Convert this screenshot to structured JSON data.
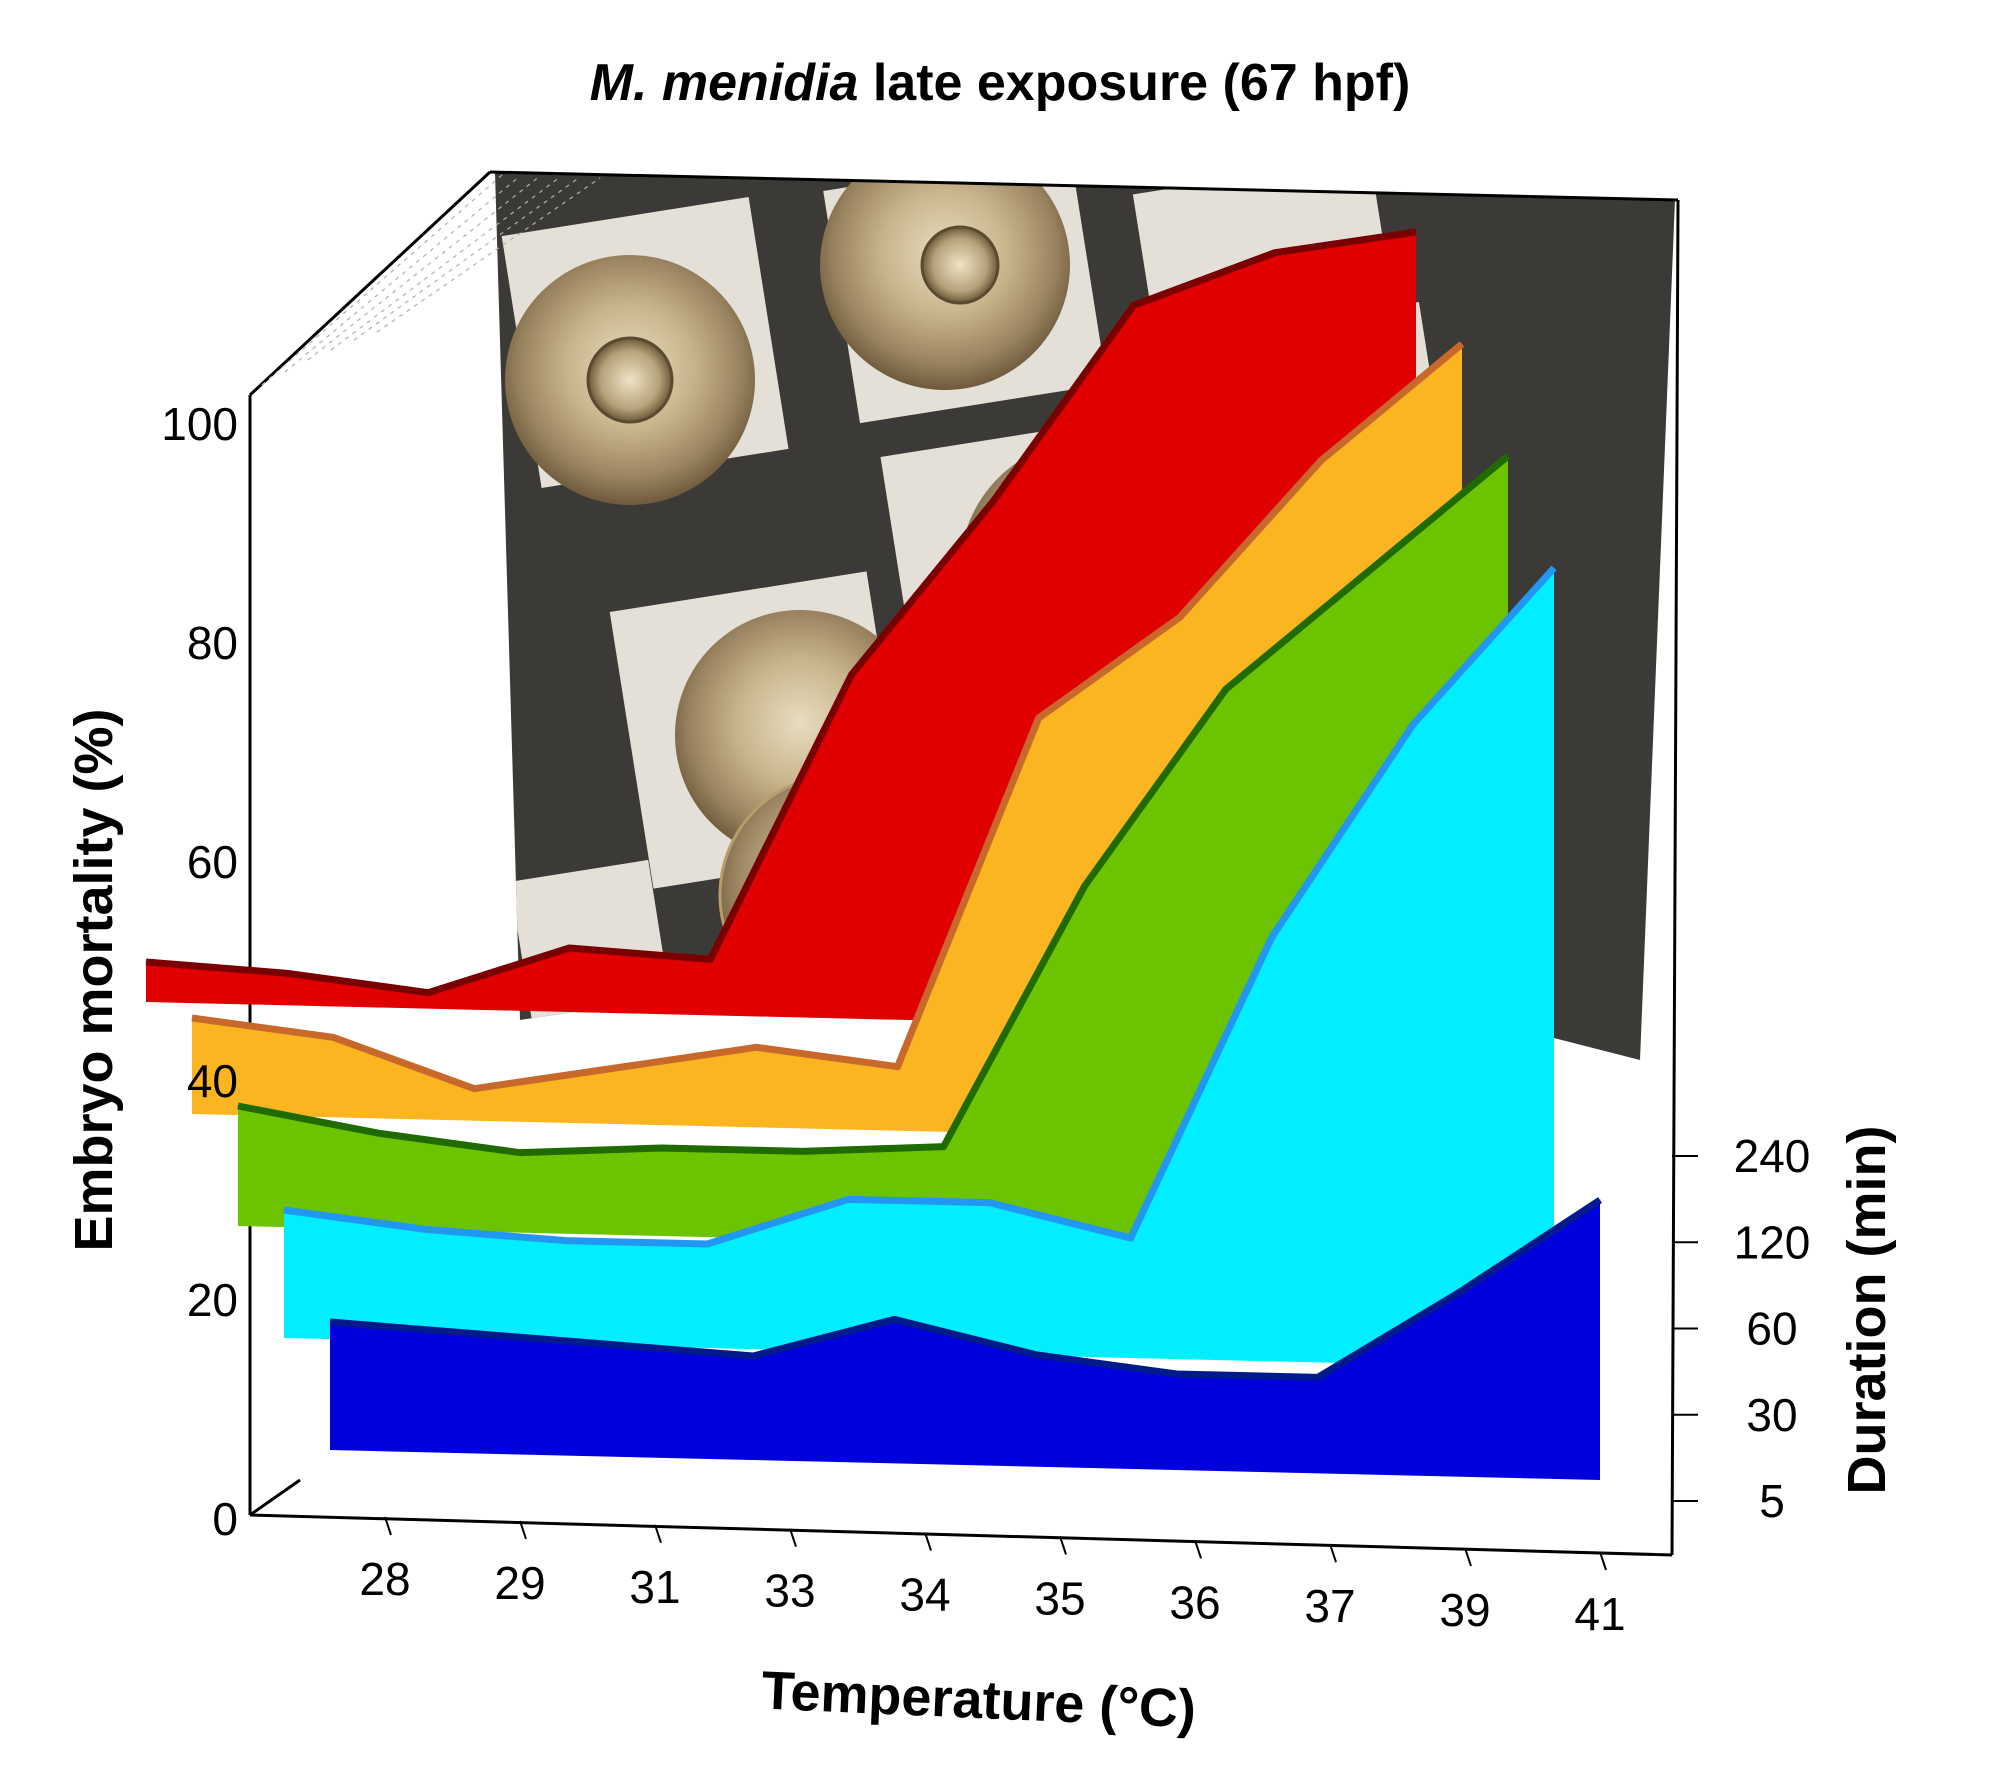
{
  "chart_data": {
    "type": "area",
    "title_italic": "M. menidia",
    "title_rest": " late exposure (67 hpf)",
    "xlabel": "Temperature (°C)",
    "ylabel": "Embryo mortality (%)",
    "zlabel": "Duration (min)",
    "categories": [
      "28",
      "29",
      "31",
      "33",
      "34",
      "35",
      "36",
      "37",
      "39",
      "41"
    ],
    "yticks": [
      "0",
      "20",
      "40",
      "60",
      "80",
      "100"
    ],
    "zticks": [
      "5",
      "30",
      "60",
      "120",
      "240"
    ],
    "ylim": [
      0,
      100
    ],
    "series": [
      {
        "name": "5",
        "color": "#0000dd",
        "edge": "#001a8c",
        "values": [
          16,
          15,
          14,
          13,
          18,
          14,
          12,
          12,
          23,
          35
        ]
      },
      {
        "name": "30",
        "color": "#00eeff",
        "edge": "#2196f3",
        "values": [
          16,
          14,
          13,
          13,
          19,
          19,
          15,
          53,
          80,
          100
        ]
      },
      {
        "name": "60",
        "color": "#6cc400",
        "edge": "#1f6b00",
        "values": [
          15,
          12,
          10,
          11,
          11,
          12,
          45,
          70,
          85,
          100
        ]
      },
      {
        "name": "120",
        "color": "#fbb521",
        "edge": "#c8692b",
        "values": [
          12,
          10,
          4,
          7,
          10,
          8,
          52,
          65,
          85,
          100
        ]
      },
      {
        "name": "240",
        "color": "#e00000",
        "edge": "#7a0000",
        "values": [
          5,
          4,
          2,
          8,
          7,
          43,
          65,
          90,
          97,
          100
        ]
      }
    ]
  }
}
